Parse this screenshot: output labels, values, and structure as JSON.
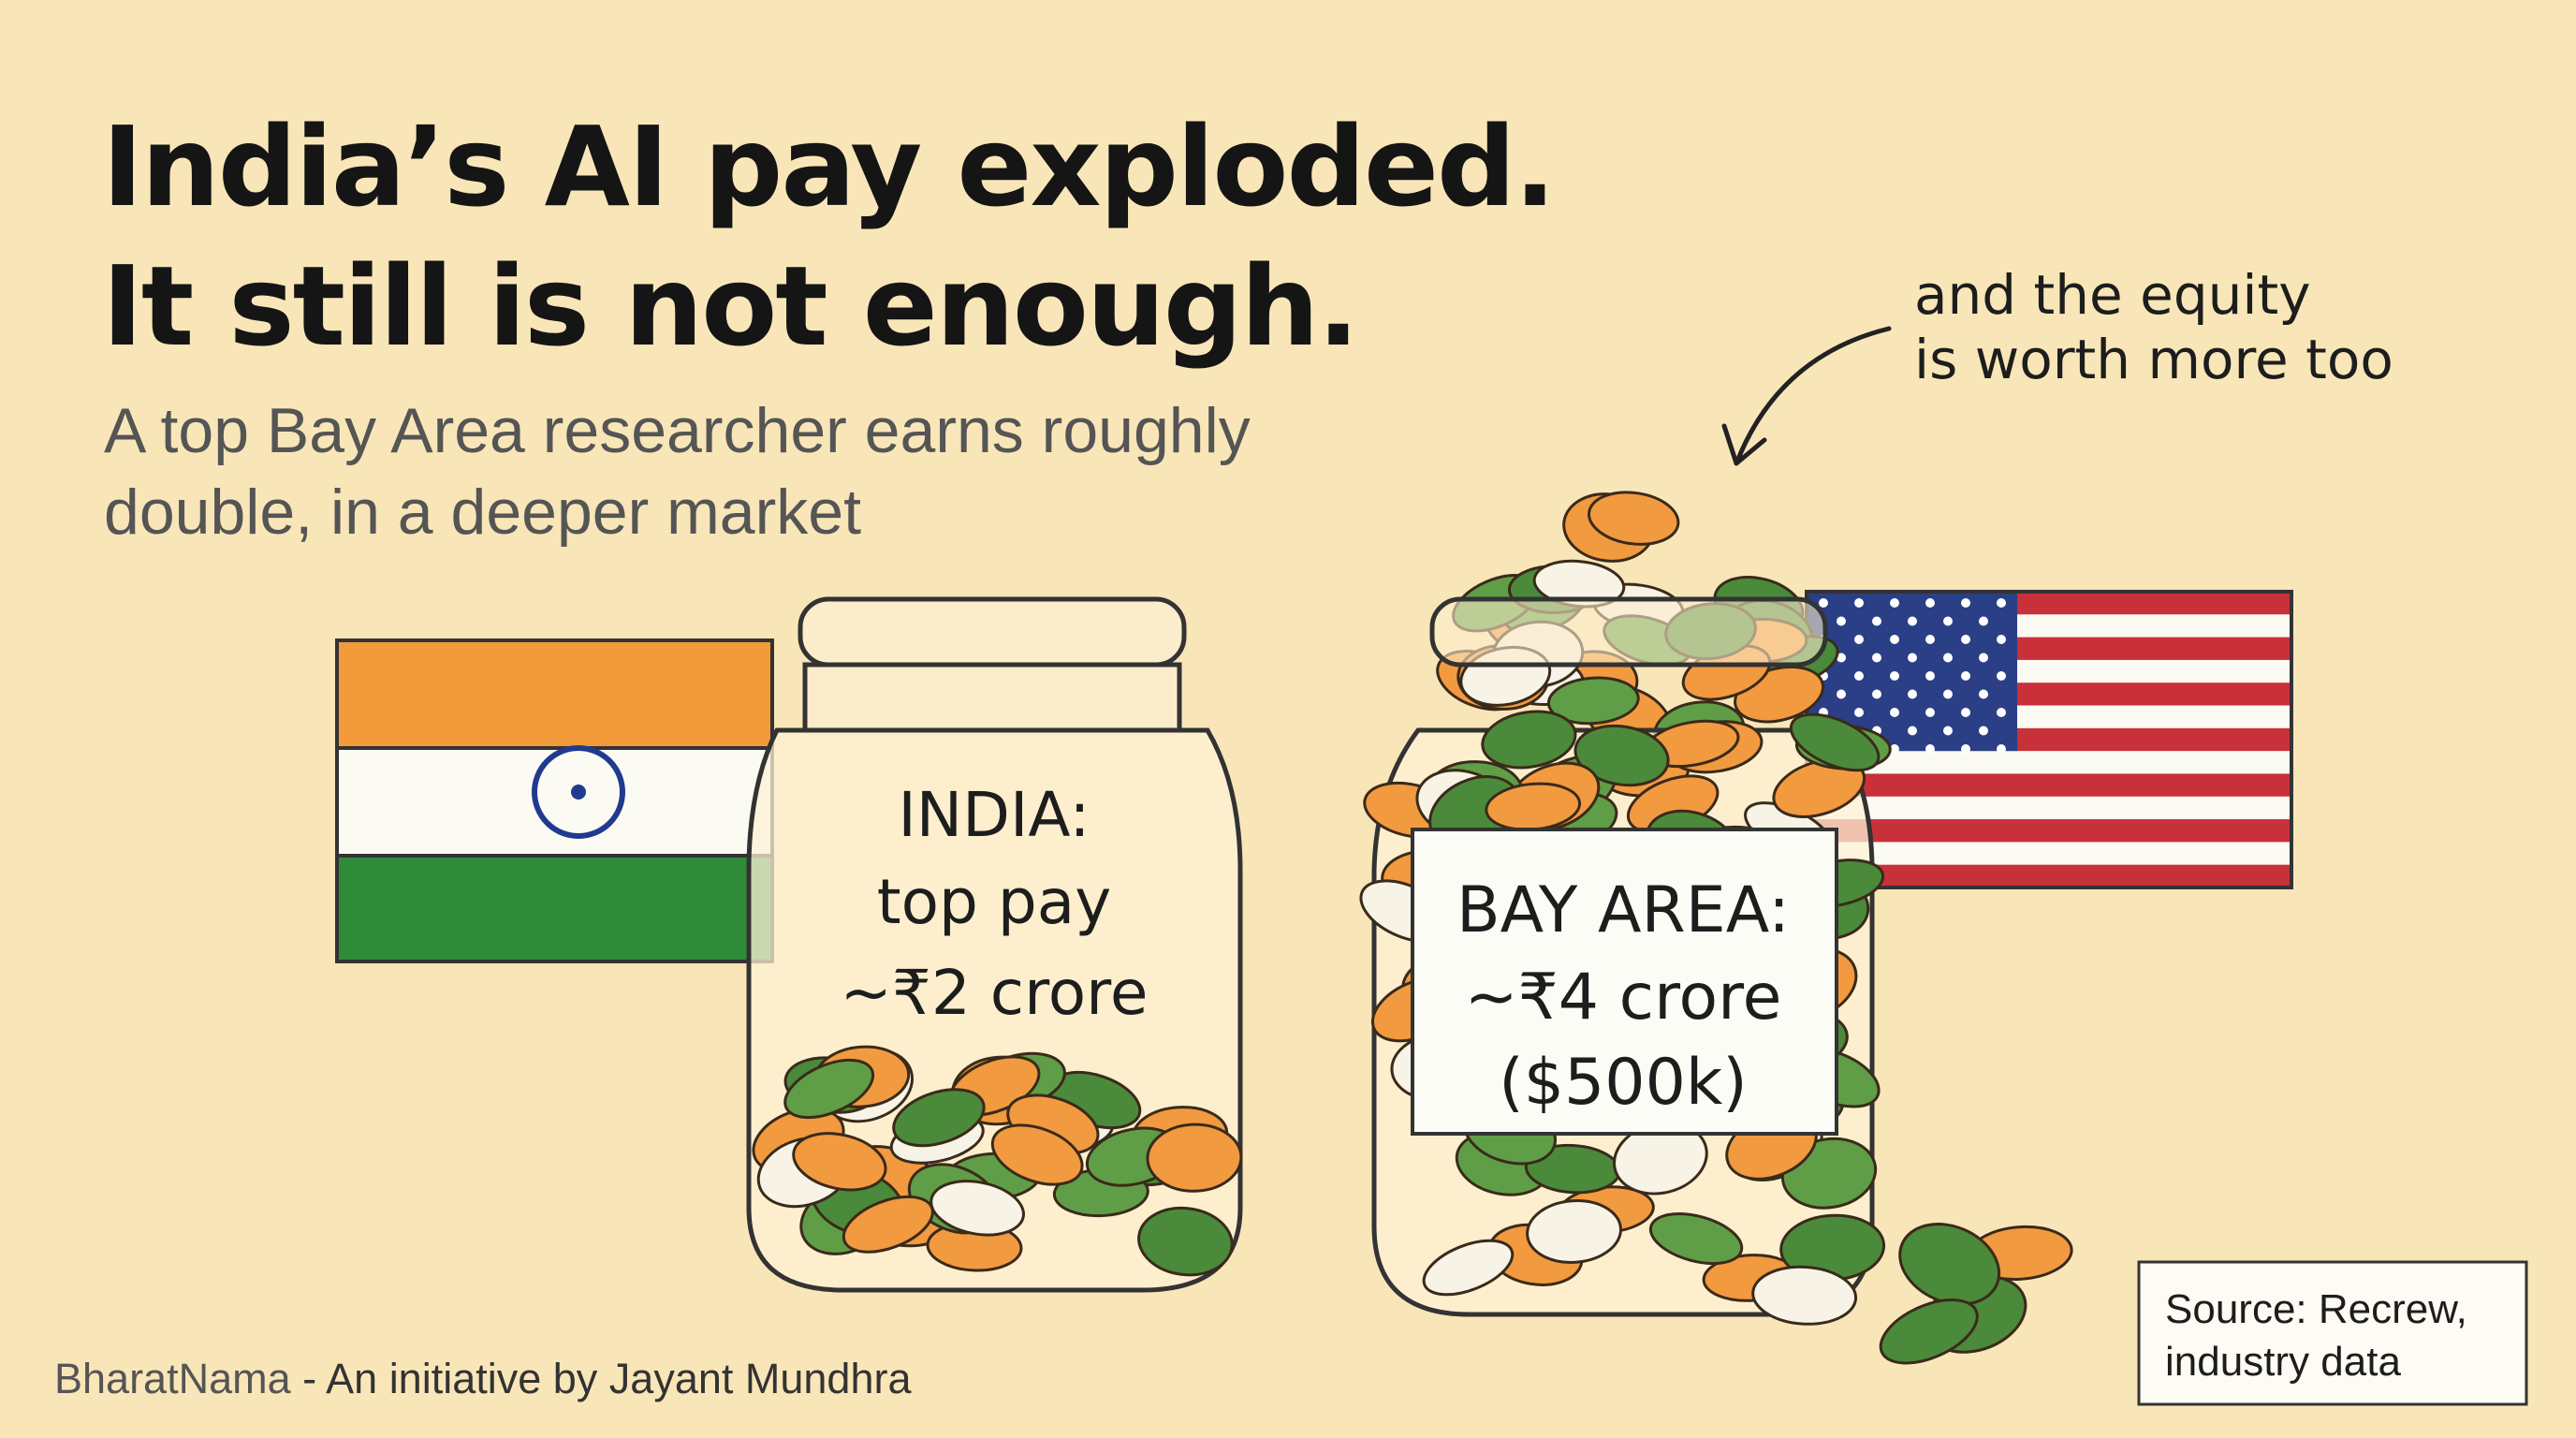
{
  "header": {
    "title": [
      "India’s AI pay exploded.",
      "It still is not enough."
    ],
    "subtitle": [
      "A top Bay Area researcher earns roughly",
      "double, in a deeper market"
    ]
  },
  "annotation": [
    "and the equity",
    "is worth more too"
  ],
  "jars": [
    {
      "label": [
        "INDIA:",
        "top pay",
        "~₹2 crore"
      ]
    },
    {
      "label": [
        "BAY AREA:",
        "~₹4 crore",
        "($500k)"
      ]
    }
  ],
  "source": [
    "Source: Recrew,",
    "industry data"
  ],
  "footer": {
    "brand": "BharatNama",
    "credit": "- An initiative by Jayant Mundhra"
  }
}
